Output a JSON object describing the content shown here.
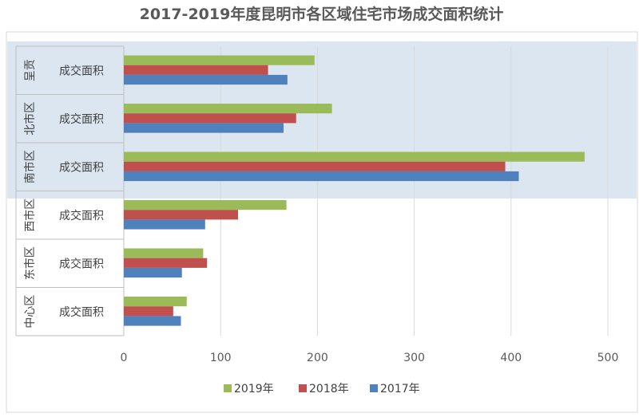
{
  "chart_data": {
    "type": "bar",
    "orientation": "horizontal",
    "title": "2017-2019年度昆明市各区域住宅市场成交面积统计",
    "categories": [
      {
        "group": "呈贡",
        "label": "成交面积"
      },
      {
        "group": "北市区",
        "label": "成交面积"
      },
      {
        "group": "南市区",
        "label": "成交面积"
      },
      {
        "group": "西市区",
        "label": "成交面积"
      },
      {
        "group": "东市区",
        "label": "成交面积"
      },
      {
        "group": "中心区",
        "label": "成交面积"
      }
    ],
    "series": [
      {
        "name": "2019年",
        "color": "#9BBB59",
        "values": [
          197,
          215,
          476,
          168,
          82,
          65
        ]
      },
      {
        "name": "2018年",
        "color": "#C0504D",
        "values": [
          149,
          178,
          394,
          118,
          86,
          51
        ]
      },
      {
        "name": "2017年",
        "color": "#4F81BD",
        "values": [
          169,
          165,
          408,
          84,
          60,
          59
        ]
      }
    ],
    "xlim": [
      0,
      500
    ],
    "xticks": [
      0,
      100,
      200,
      300,
      400,
      500
    ],
    "grid": "vertical",
    "legend_position": "bottom",
    "highlight_color": "#DCE6F1"
  }
}
